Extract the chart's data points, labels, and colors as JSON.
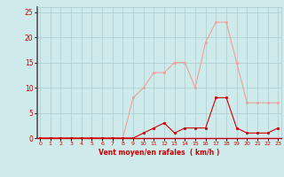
{
  "hours": [
    0,
    1,
    2,
    3,
    4,
    5,
    6,
    7,
    8,
    9,
    10,
    11,
    12,
    13,
    14,
    15,
    16,
    17,
    18,
    19,
    20,
    21,
    22,
    23
  ],
  "rafales": [
    0,
    0,
    0,
    0,
    0,
    0,
    0,
    0,
    0,
    8,
    10,
    13,
    13,
    15,
    15,
    10,
    19,
    23,
    23,
    15,
    7,
    7,
    7,
    7
  ],
  "moyen": [
    0,
    0,
    0,
    0,
    0,
    0,
    0,
    0,
    0,
    0,
    1,
    2,
    3,
    1,
    2,
    2,
    2,
    8,
    8,
    2,
    1,
    1,
    1,
    2
  ],
  "bg_color": "#ceeaea",
  "grid_color": "#aacccc",
  "line_color_rafales": "#f0a0a0",
  "line_color_moyen": "#cc0000",
  "xlabel": "Vent moyen/en rafales  ( km/h )",
  "xlabel_color": "#cc0000",
  "tick_color": "#cc0000",
  "ylim": [
    0,
    26
  ],
  "yticks": [
    0,
    5,
    10,
    15,
    20,
    25
  ],
  "xlim": [
    -0.3,
    23.3
  ]
}
